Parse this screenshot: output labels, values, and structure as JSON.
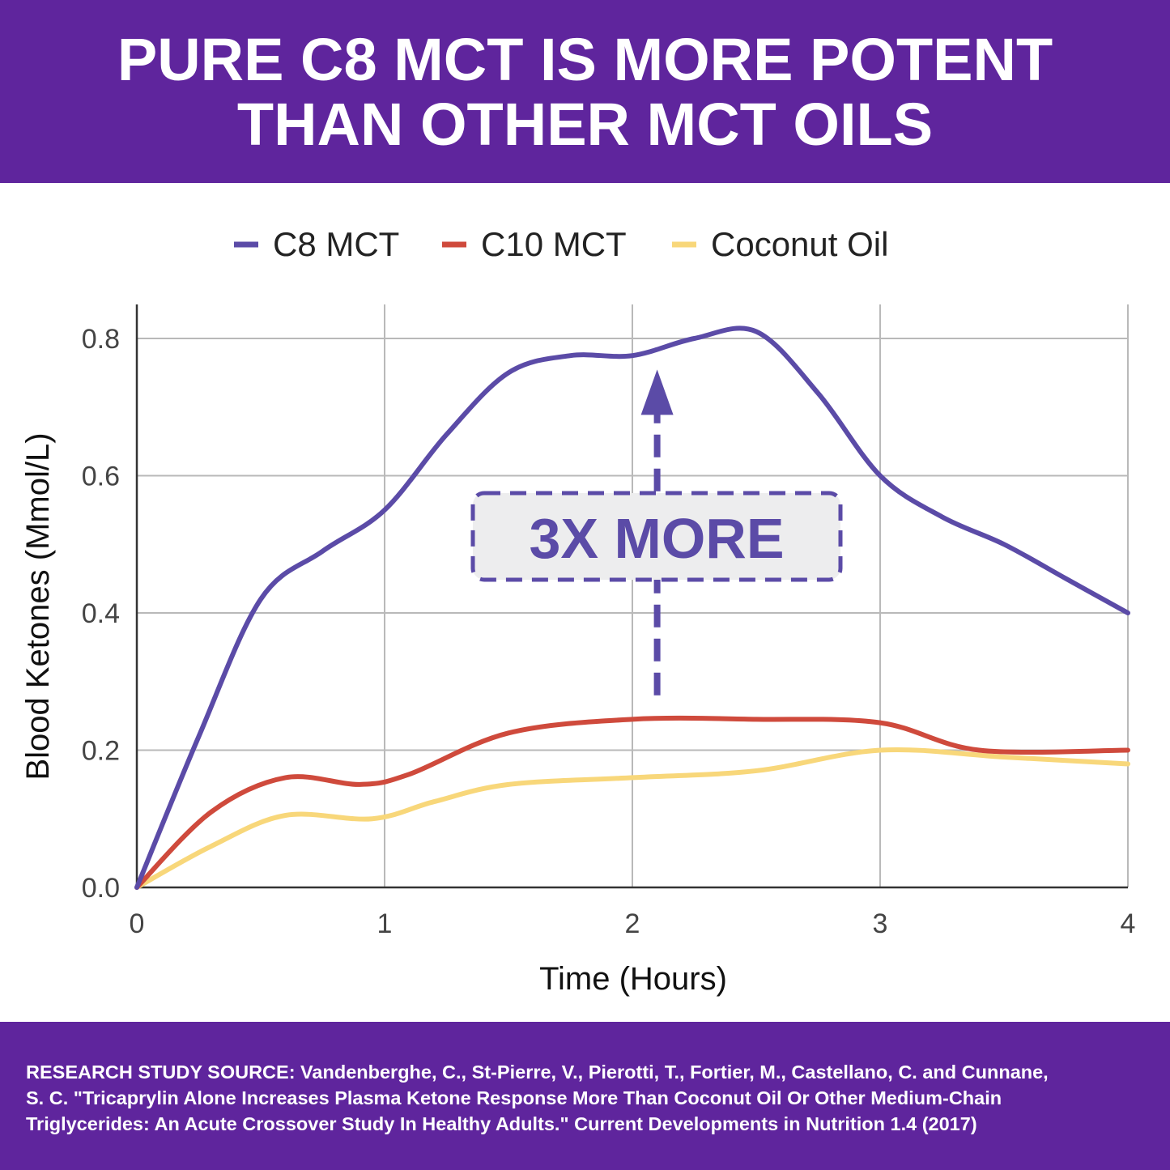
{
  "header": {
    "title_line1": "PURE C8 MCT IS MORE POTENT",
    "title_line2": "THAN OTHER MCT OILS"
  },
  "colors": {
    "brand": "#5f259d",
    "c8": "#5b4ba7",
    "c10": "#cf4a3c",
    "coconut": "#f8d77a",
    "callout_bg": "#ededee"
  },
  "chart_data": {
    "type": "line",
    "title": "",
    "xlabel": "Time (Hours)",
    "ylabel": "Blood Ketones (Mmol/L)",
    "xlim": [
      0,
      4
    ],
    "ylim": [
      0,
      0.85
    ],
    "x_ticks": [
      0,
      1,
      2,
      3,
      4
    ],
    "x_tick_labels": [
      "0",
      "1",
      "2",
      "3",
      "4"
    ],
    "y_ticks": [
      0,
      0.2,
      0.4,
      0.6,
      0.8
    ],
    "y_tick_labels": [
      "0.0",
      "0.2",
      "0.4",
      "0.6",
      "0.8"
    ],
    "grid": true,
    "legend_position": "top-center",
    "series": [
      {
        "name": "C8 MCT",
        "color": "#5b4ba7",
        "x": [
          0,
          0.25,
          0.5,
          0.75,
          1.0,
          1.25,
          1.5,
          1.75,
          2.0,
          2.25,
          2.5,
          2.75,
          3.0,
          3.25,
          3.5,
          3.75,
          4.0
        ],
        "y": [
          0.0,
          0.22,
          0.42,
          0.49,
          0.55,
          0.66,
          0.75,
          0.775,
          0.775,
          0.8,
          0.81,
          0.72,
          0.6,
          0.54,
          0.5,
          0.45,
          0.4
        ]
      },
      {
        "name": "C10 MCT",
        "color": "#cf4a3c",
        "x": [
          0,
          0.3,
          0.6,
          0.9,
          1.1,
          1.5,
          2.0,
          2.5,
          3.0,
          3.4,
          4.0
        ],
        "y": [
          0.0,
          0.11,
          0.16,
          0.15,
          0.165,
          0.225,
          0.245,
          0.245,
          0.24,
          0.2,
          0.2
        ]
      },
      {
        "name": "Coconut Oil",
        "color": "#f8d77a",
        "x": [
          0,
          0.3,
          0.6,
          0.95,
          1.2,
          1.5,
          2.0,
          2.5,
          3.0,
          3.5,
          4.0
        ],
        "y": [
          0.0,
          0.06,
          0.105,
          0.1,
          0.125,
          0.15,
          0.16,
          0.17,
          0.2,
          0.19,
          0.18
        ]
      }
    ],
    "annotations": [
      {
        "text": "3X MORE",
        "type": "callout-arrow",
        "x": 2.1,
        "y_from": 0.28,
        "y_to": 0.75
      }
    ]
  },
  "footer": {
    "line1": "RESEARCH STUDY SOURCE: Vandenberghe, C., St-Pierre, V., Pierotti, T., Fortier, M., Castellano, C. and Cunnane,",
    "line2": "S. C. \"Tricaprylin Alone Increases Plasma Ketone Response More Than Coconut Oil Or Other Medium-Chain",
    "line3": "Triglycerides: An Acute Crossover Study In Healthy Adults.\" Current Developments in Nutrition 1.4 (2017)"
  }
}
